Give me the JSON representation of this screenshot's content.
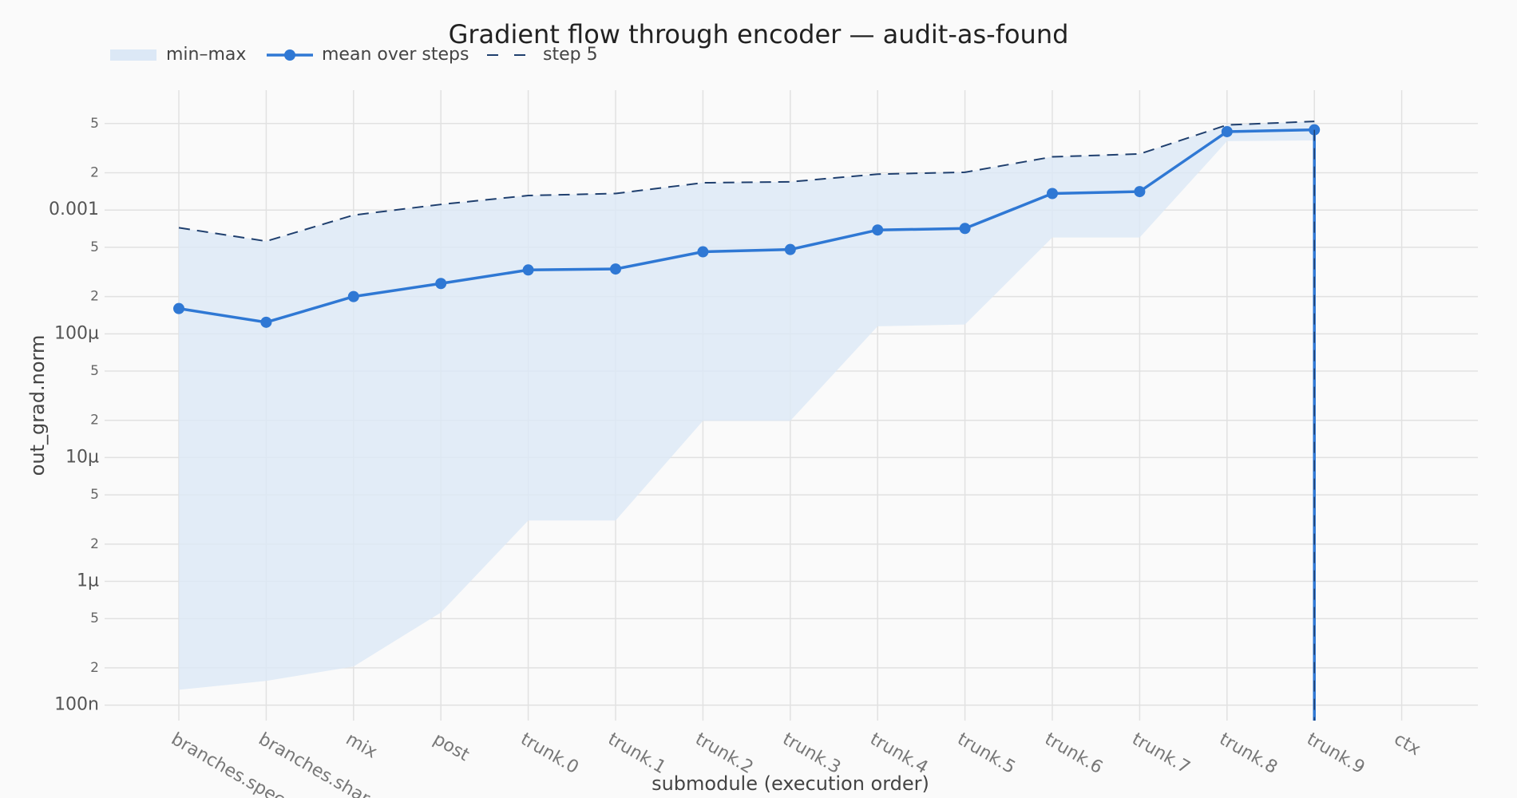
{
  "chart_data": {
    "type": "line",
    "title": "Gradient flow through encoder — audit-as-found",
    "x_label": "submodule (execution order)",
    "y_label": "out_grad.norm",
    "log_y": true,
    "grid": true,
    "legend": "top-left",
    "categories": [
      "branches.spec",
      "branches.shar",
      "mix",
      "post",
      "trunk.0",
      "trunk.1",
      "trunk.2",
      "trunk.3",
      "trunk.4",
      "trunk.5",
      "trunk.6",
      "trunk.7",
      "trunk.8",
      "trunk.9",
      "ctx"
    ],
    "band": {
      "name": "min–max",
      "color": "#dce8f6",
      "min": [
        1.33e-07,
        1.57e-07,
        2.05e-07,
        5.6e-07,
        3.1e-06,
        3.1e-06,
        1.98e-05,
        1.98e-05,
        0.000115,
        0.000119,
        0.0006,
        0.0006,
        0.0036,
        0.00365,
        null
      ],
      "max": [
        0.00072,
        0.00056,
        0.00091,
        0.00111,
        0.00131,
        0.00136,
        0.00166,
        0.00169,
        0.00195,
        0.00202,
        0.00269,
        0.00284,
        0.00487,
        0.0052,
        null
      ]
    },
    "series": [
      {
        "name": "mean over steps",
        "color": "#2f78d4",
        "markers": true,
        "values": [
          0.00016,
          0.000124,
          0.0002,
          0.000255,
          0.000328,
          0.000334,
          0.00046,
          0.00048,
          0.00069,
          0.00071,
          0.00136,
          0.00141,
          0.0043,
          0.00445,
          null
        ]
      },
      {
        "name": "step 5",
        "color": "#1f3f6e",
        "dashed": true,
        "values": [
          0.00072,
          0.00056,
          0.00091,
          0.00111,
          0.00131,
          0.00136,
          0.00166,
          0.00169,
          0.00195,
          0.00202,
          0.00269,
          0.00284,
          0.00487,
          0.0052,
          null
        ]
      }
    ],
    "ylim": [
      7.5e-08,
      0.0093
    ],
    "yticks": [
      {
        "value": 1e-07,
        "label": "100n"
      },
      {
        "value": 2e-07,
        "label": "2"
      },
      {
        "value": 5e-07,
        "label": "5"
      },
      {
        "value": 1e-06,
        "label": "1µ"
      },
      {
        "value": 2e-06,
        "label": "2"
      },
      {
        "value": 5e-06,
        "label": "5"
      },
      {
        "value": 1e-05,
        "label": "10µ"
      },
      {
        "value": 2e-05,
        "label": "2"
      },
      {
        "value": 5e-05,
        "label": "5"
      },
      {
        "value": 0.0001,
        "label": "100µ"
      },
      {
        "value": 0.0002,
        "label": "2"
      },
      {
        "value": 0.0005,
        "label": "5"
      },
      0.001,
      {
        "value": 0.002,
        "label": "2"
      },
      {
        "value": 0.005,
        "label": "5"
      }
    ]
  }
}
